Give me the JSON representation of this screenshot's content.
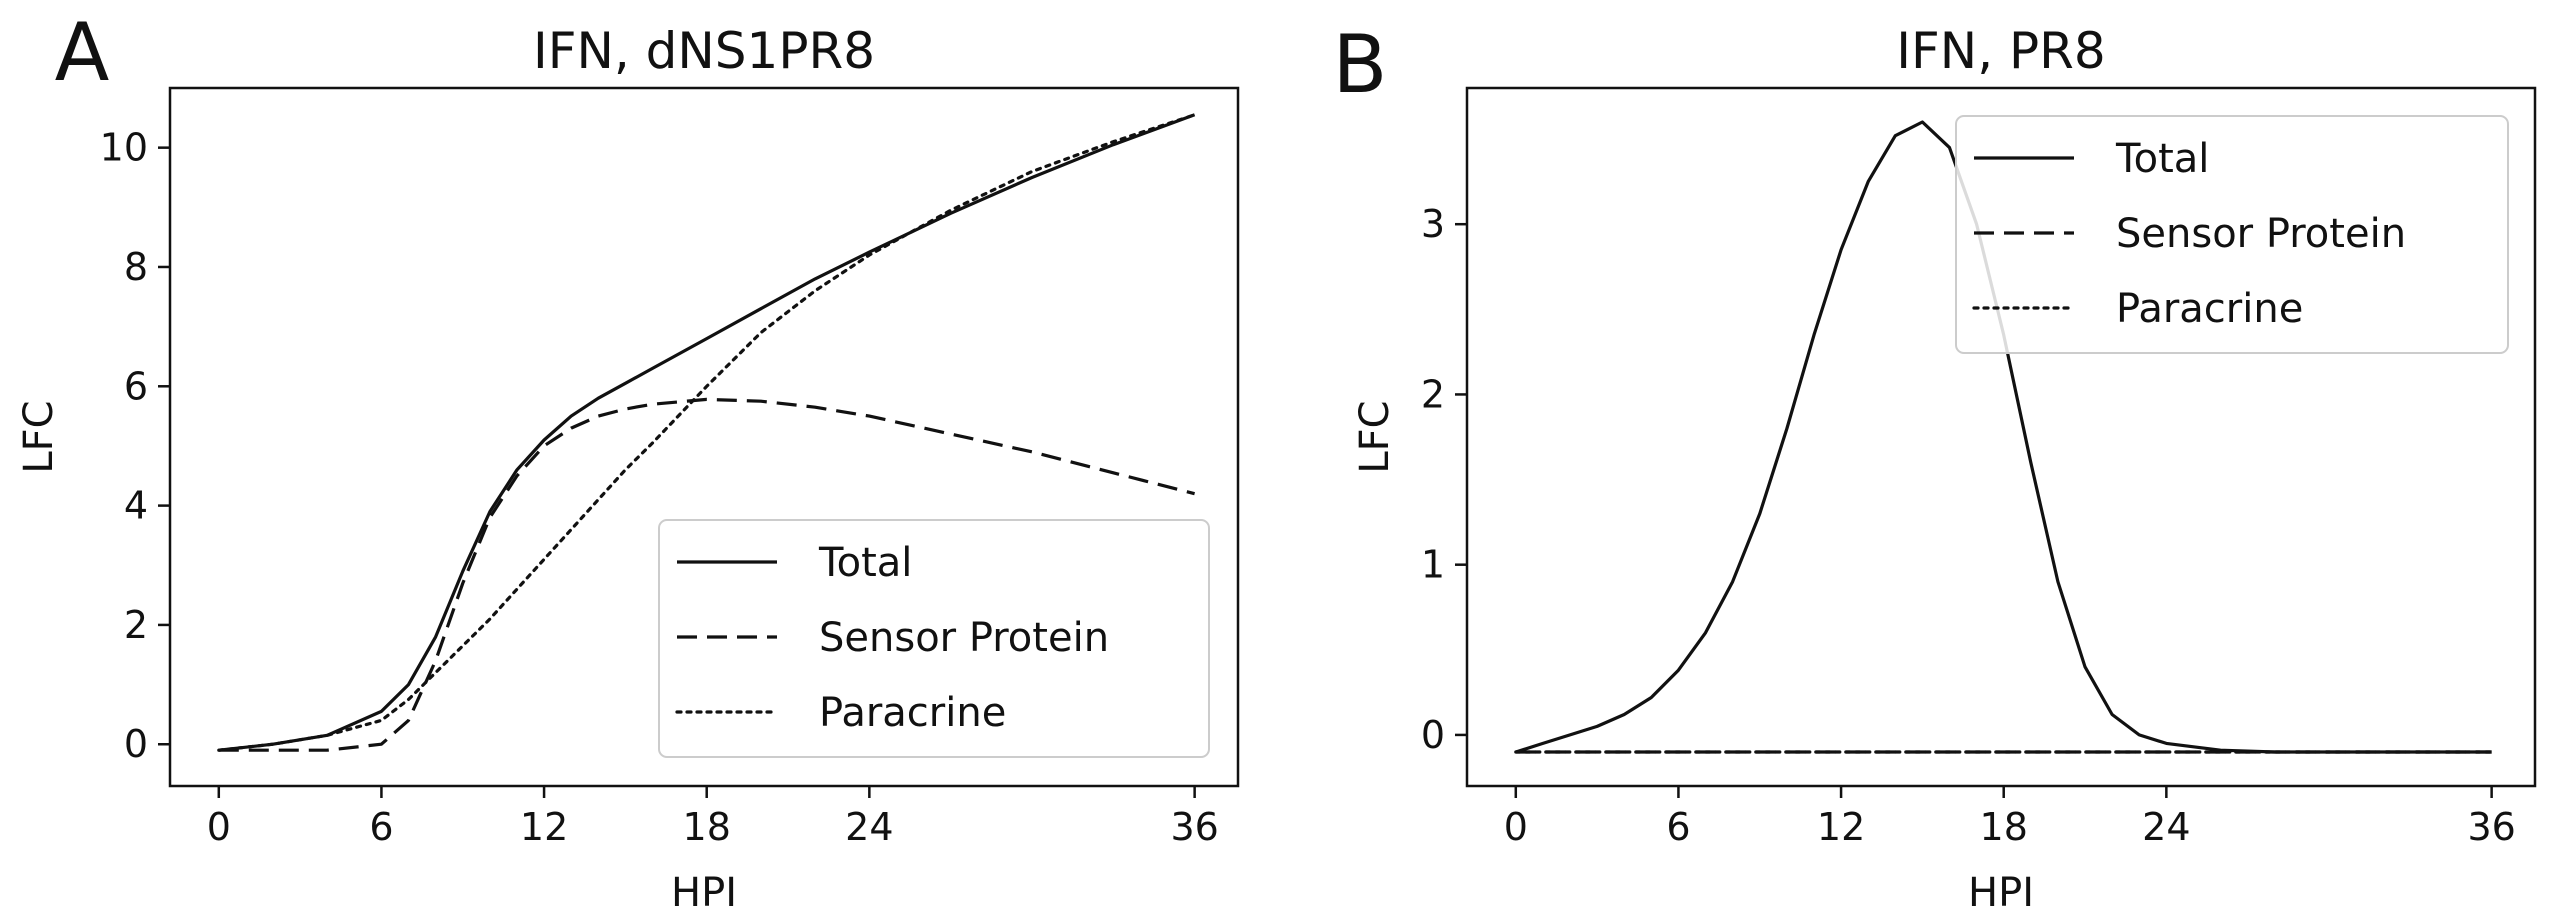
{
  "figure": {
    "panels": [
      {
        "letter": "A"
      },
      {
        "letter": "B"
      }
    ]
  },
  "chart_data": [
    {
      "type": "line",
      "panel": "A",
      "title": "IFN, dNS1PR8",
      "xlabel": "HPI",
      "ylabel": "LFC",
      "xlim": [
        -1.8,
        37.6
      ],
      "ylim": [
        -0.7,
        11
      ],
      "xticks": [
        0,
        6,
        12,
        18,
        24,
        36
      ],
      "yticks": [
        0,
        2,
        4,
        6,
        8,
        10
      ],
      "legend_position": "lower-right",
      "grid": false,
      "x": [
        0,
        2,
        4,
        6,
        7,
        8,
        9,
        10,
        11,
        12,
        13,
        14,
        15,
        16,
        18,
        20,
        22,
        24,
        27,
        30,
        33,
        36
      ],
      "series": [
        {
          "name": "Total",
          "style": "solid",
          "values": [
            -0.1,
            0.0,
            0.15,
            0.55,
            1.0,
            1.8,
            2.9,
            3.9,
            4.6,
            5.1,
            5.5,
            5.8,
            6.05,
            6.3,
            6.8,
            7.3,
            7.8,
            8.25,
            8.9,
            9.5,
            10.05,
            10.55
          ]
        },
        {
          "name": "Sensor Protein",
          "style": "dashed",
          "values": [
            -0.1,
            -0.1,
            -0.1,
            0.0,
            0.4,
            1.4,
            2.7,
            3.8,
            4.5,
            5.0,
            5.3,
            5.5,
            5.62,
            5.7,
            5.78,
            5.75,
            5.65,
            5.5,
            5.2,
            4.9,
            4.55,
            4.2
          ]
        },
        {
          "name": "Paracrine",
          "style": "dotted",
          "values": [
            -0.1,
            0.0,
            0.15,
            0.4,
            0.75,
            1.2,
            1.65,
            2.1,
            2.6,
            3.1,
            3.6,
            4.1,
            4.6,
            5.05,
            6.0,
            6.9,
            7.6,
            8.2,
            8.95,
            9.6,
            10.1,
            10.55
          ]
        }
      ]
    },
    {
      "type": "line",
      "panel": "B",
      "title": "IFN, PR8",
      "xlabel": "HPI",
      "ylabel": "LFC",
      "xlim": [
        -1.8,
        37.6
      ],
      "ylim": [
        -0.3,
        3.8
      ],
      "xticks": [
        0,
        6,
        12,
        18,
        24,
        36
      ],
      "yticks": [
        0,
        1,
        2,
        3
      ],
      "legend_position": "upper-right",
      "grid": false,
      "x": [
        0,
        1,
        2,
        3,
        4,
        5,
        6,
        7,
        8,
        9,
        10,
        11,
        12,
        13,
        14,
        15,
        16,
        17,
        18,
        19,
        20,
        21,
        22,
        23,
        24,
        26,
        28,
        30,
        33,
        36
      ],
      "series": [
        {
          "name": "Total",
          "style": "solid",
          "values": [
            -0.1,
            -0.05,
            0.0,
            0.05,
            0.12,
            0.22,
            0.38,
            0.6,
            0.9,
            1.3,
            1.8,
            2.35,
            2.85,
            3.25,
            3.52,
            3.6,
            3.45,
            3.0,
            2.35,
            1.6,
            0.9,
            0.4,
            0.12,
            0.0,
            -0.05,
            -0.09,
            -0.1,
            -0.1,
            -0.1,
            -0.1
          ]
        },
        {
          "name": "Sensor Protein",
          "style": "dashed",
          "values": [
            -0.1,
            -0.1,
            -0.1,
            -0.1,
            -0.1,
            -0.1,
            -0.1,
            -0.1,
            -0.1,
            -0.1,
            -0.1,
            -0.1,
            -0.1,
            -0.1,
            -0.1,
            -0.1,
            -0.1,
            -0.1,
            -0.1,
            -0.1,
            -0.1,
            -0.1,
            -0.1,
            -0.1,
            -0.1,
            -0.1,
            -0.1,
            -0.1,
            -0.1,
            -0.1
          ]
        },
        {
          "name": "Paracrine",
          "style": "dotted",
          "values": [
            -0.1,
            -0.1,
            -0.1,
            -0.1,
            -0.1,
            -0.1,
            -0.1,
            -0.1,
            -0.1,
            -0.1,
            -0.1,
            -0.1,
            -0.1,
            -0.1,
            -0.1,
            -0.1,
            -0.1,
            -0.1,
            -0.1,
            -0.1,
            -0.1,
            -0.1,
            -0.1,
            -0.1,
            -0.1,
            -0.1,
            -0.1,
            -0.1,
            -0.1,
            -0.1
          ]
        }
      ]
    }
  ]
}
